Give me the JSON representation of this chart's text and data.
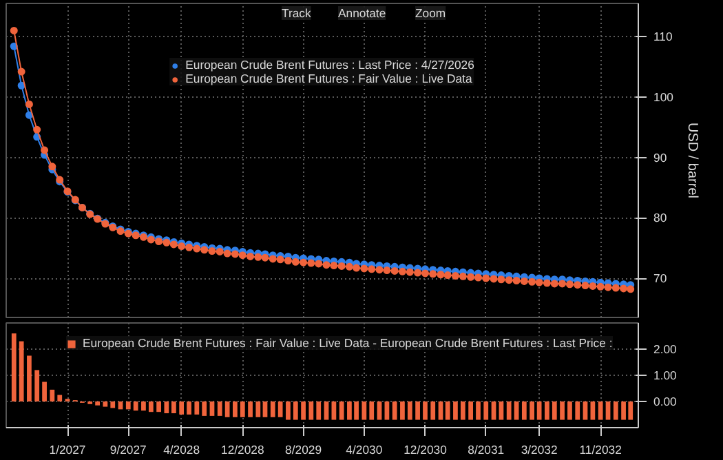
{
  "chart_data": [
    {
      "type": "line",
      "annotations": [
        "Track",
        "Annotate",
        "Zoom"
      ],
      "ylabel": "USD / barrel",
      "ylim": [
        63.5,
        115.5
      ],
      "yticks": [
        70,
        80,
        90,
        100,
        110
      ],
      "xlim": [
        "2026-05",
        "2033-04"
      ],
      "xticks": [
        {
          "value": "2027-01",
          "label": null
        },
        {
          "value": "2027-09",
          "label": null
        },
        {
          "value": "2028-04",
          "label": null
        },
        {
          "value": "2028-12",
          "label": null
        },
        {
          "value": "2029-08",
          "label": null
        },
        {
          "value": "2030-04",
          "label": null
        },
        {
          "value": "2030-12",
          "label": null
        },
        {
          "value": "2031-08",
          "label": null
        },
        {
          "value": "2032-03",
          "label": null
        },
        {
          "value": "2032-11",
          "label": null
        }
      ],
      "tick_labels": "y",
      "grid": true,
      "legend": "top",
      "marker": "circle",
      "line_style": "solid",
      "x": [
        "2026-06",
        "2026-07",
        "2026-08",
        "2026-09",
        "2026-10",
        "2026-11",
        "2026-12",
        "2027-01",
        "2027-02",
        "2027-03",
        "2027-04",
        "2027-05",
        "2027-06",
        "2027-07",
        "2027-08",
        "2027-09",
        "2027-10",
        "2027-11",
        "2027-12",
        "2028-01",
        "2028-02",
        "2028-03",
        "2028-04",
        "2028-05",
        "2028-06",
        "2028-07",
        "2028-08",
        "2028-09",
        "2028-10",
        "2028-11",
        "2028-12",
        "2029-01",
        "2029-02",
        "2029-03",
        "2029-04",
        "2029-05",
        "2029-06",
        "2029-07",
        "2029-08",
        "2029-09",
        "2029-10",
        "2029-11",
        "2029-12",
        "2030-01",
        "2030-02",
        "2030-03",
        "2030-04",
        "2030-05",
        "2030-06",
        "2030-07",
        "2030-08",
        "2030-09",
        "2030-10",
        "2030-11",
        "2030-12",
        "2031-01",
        "2031-02",
        "2031-03",
        "2031-04",
        "2031-05",
        "2031-06",
        "2031-07",
        "2031-08",
        "2031-09",
        "2031-10",
        "2031-11",
        "2031-12",
        "2032-01",
        "2032-02",
        "2032-03",
        "2032-04",
        "2032-05",
        "2032-06",
        "2032-07",
        "2032-08",
        "2032-09",
        "2032-10",
        "2032-11",
        "2032-12",
        "2033-01",
        "2033-02",
        "2033-03"
      ],
      "series": [
        {
          "name": "European Crude Brent Futures : Last Price : 4/27/2026",
          "color": "#2f7fe8",
          "values": [
            108.4,
            101.9,
            97.0,
            93.4,
            90.4,
            88.0,
            86.0,
            84.3,
            82.9,
            81.7,
            80.7,
            79.9,
            79.2,
            78.6,
            78.1,
            77.7,
            77.4,
            77.1,
            76.8,
            76.5,
            76.3,
            76.0,
            75.8,
            75.6,
            75.4,
            75.2,
            75.0,
            74.9,
            74.7,
            74.6,
            74.4,
            74.2,
            74.1,
            74.0,
            73.8,
            73.7,
            73.6,
            73.4,
            73.3,
            73.2,
            73.1,
            72.9,
            72.8,
            72.7,
            72.6,
            72.4,
            72.3,
            72.2,
            72.1,
            72.0,
            71.9,
            71.8,
            71.7,
            71.6,
            71.5,
            71.4,
            71.3,
            71.2,
            71.1,
            71.0,
            70.9,
            70.8,
            70.7,
            70.6,
            70.5,
            70.4,
            70.3,
            70.2,
            70.1,
            70.0,
            69.9,
            69.8,
            69.8,
            69.7,
            69.6,
            69.5,
            69.4,
            69.3,
            69.2,
            69.1,
            69.0,
            68.9
          ]
        },
        {
          "name": "European Crude Brent Futures : Fair Value : Live Data",
          "color": "#f0643c",
          "values": [
            111.0,
            104.2,
            98.8,
            94.6,
            91.2,
            88.5,
            86.3,
            84.4,
            83.0,
            81.7,
            80.6,
            79.8,
            79.0,
            78.4,
            77.8,
            77.4,
            77.1,
            76.8,
            76.4,
            76.1,
            75.9,
            75.6,
            75.3,
            75.1,
            74.9,
            74.7,
            74.5,
            74.4,
            74.1,
            74.0,
            73.8,
            73.6,
            73.5,
            73.4,
            73.2,
            73.1,
            72.9,
            72.7,
            72.6,
            72.5,
            72.4,
            72.2,
            72.1,
            72.0,
            71.9,
            71.7,
            71.6,
            71.5,
            71.4,
            71.3,
            71.2,
            71.1,
            71.0,
            70.9,
            70.8,
            70.7,
            70.6,
            70.5,
            70.4,
            70.3,
            70.2,
            70.1,
            70.0,
            69.9,
            69.8,
            69.7,
            69.6,
            69.5,
            69.4,
            69.3,
            69.2,
            69.1,
            69.1,
            69.0,
            68.9,
            68.8,
            68.7,
            68.6,
            68.5,
            68.4,
            68.3,
            68.2
          ]
        }
      ]
    },
    {
      "type": "bar",
      "ylim": [
        -1,
        3
      ],
      "yticks": [
        {
          "value": 0,
          "label": "0.00"
        },
        {
          "value": 1,
          "label": "1.00"
        },
        {
          "value": 2,
          "label": "2.00"
        }
      ],
      "xlim": [
        "2026-05",
        "2033-04"
      ],
      "xticks": [
        {
          "value": "2027-01",
          "label": "1/2027"
        },
        {
          "value": "2027-09",
          "label": "9/2027"
        },
        {
          "value": "2028-04",
          "label": "4/2028"
        },
        {
          "value": "2028-12",
          "label": "12/2028"
        },
        {
          "value": "2029-08",
          "label": "8/2029"
        },
        {
          "value": "2030-04",
          "label": "4/2030"
        },
        {
          "value": "2030-12",
          "label": "12/2030"
        },
        {
          "value": "2031-08",
          "label": "8/2031"
        },
        {
          "value": "2032-03",
          "label": "3/2032"
        },
        {
          "value": "2032-11",
          "label": "11/2032"
        }
      ],
      "grid": true,
      "legend": "top left",
      "x": [
        "2026-06",
        "2026-07",
        "2026-08",
        "2026-09",
        "2026-10",
        "2026-11",
        "2026-12",
        "2027-01",
        "2027-02",
        "2027-03",
        "2027-04",
        "2027-05",
        "2027-06",
        "2027-07",
        "2027-08",
        "2027-09",
        "2027-10",
        "2027-11",
        "2027-12",
        "2028-01",
        "2028-02",
        "2028-03",
        "2028-04",
        "2028-05",
        "2028-06",
        "2028-07",
        "2028-08",
        "2028-09",
        "2028-10",
        "2028-11",
        "2028-12",
        "2029-01",
        "2029-02",
        "2029-03",
        "2029-04",
        "2029-05",
        "2029-06",
        "2029-07",
        "2029-08",
        "2029-09",
        "2029-10",
        "2029-11",
        "2029-12",
        "2030-01",
        "2030-02",
        "2030-03",
        "2030-04",
        "2030-05",
        "2030-06",
        "2030-07",
        "2030-08",
        "2030-09",
        "2030-10",
        "2030-11",
        "2030-12",
        "2031-01",
        "2031-02",
        "2031-03",
        "2031-04",
        "2031-05",
        "2031-06",
        "2031-07",
        "2031-08",
        "2031-09",
        "2031-10",
        "2031-11",
        "2031-12",
        "2032-01",
        "2032-02",
        "2032-03",
        "2032-04",
        "2032-05",
        "2032-06",
        "2032-07",
        "2032-08",
        "2032-09",
        "2032-10",
        "2032-11",
        "2032-12",
        "2033-01",
        "2033-02",
        "2033-03"
      ],
      "series": [
        {
          "name": "European Crude Brent Futures : Fair Value : Live Data - European Crude Brent Futures : Last Price :",
          "color": "#f0643c",
          "values": [
            2.6,
            2.3,
            1.75,
            1.2,
            0.75,
            0.45,
            0.25,
            0.1,
            0.05,
            -0.05,
            -0.1,
            -0.15,
            -0.2,
            -0.25,
            -0.3,
            -0.3,
            -0.35,
            -0.35,
            -0.4,
            -0.4,
            -0.45,
            -0.45,
            -0.5,
            -0.5,
            -0.5,
            -0.55,
            -0.55,
            -0.55,
            -0.6,
            -0.6,
            -0.6,
            -0.6,
            -0.6,
            -0.6,
            -0.6,
            -0.6,
            -0.7,
            -0.7,
            -0.7,
            -0.7,
            -0.7,
            -0.7,
            -0.7,
            -0.7,
            -0.7,
            -0.7,
            -0.7,
            -0.7,
            -0.7,
            -0.7,
            -0.7,
            -0.7,
            -0.7,
            -0.7,
            -0.7,
            -0.7,
            -0.7,
            -0.7,
            -0.7,
            -0.7,
            -0.7,
            -0.7,
            -0.7,
            -0.7,
            -0.7,
            -0.7,
            -0.7,
            -0.7,
            -0.7,
            -0.7,
            -0.7,
            -0.7,
            -0.7,
            -0.7,
            -0.7,
            -0.7,
            -0.7,
            -0.7,
            -0.7,
            -0.7,
            -0.7,
            -0.7
          ]
        }
      ]
    }
  ]
}
